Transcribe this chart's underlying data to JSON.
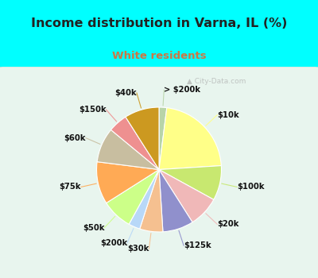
{
  "title": "Income distribution in Varna, IL (%)",
  "subtitle": "White residents",
  "background_color": "#00FFFF",
  "labels": [
    "> $200k",
    "$10k",
    "$100k",
    "$20k",
    "$125k",
    "$30k",
    "$200k",
    "$50k",
    "$75k",
    "$60k",
    "$150k",
    "$40k"
  ],
  "sizes": [
    2,
    22,
    9,
    8,
    8,
    6,
    3,
    8,
    11,
    9,
    5,
    9
  ],
  "colors": [
    "#b8d4a8",
    "#ffff88",
    "#c8e870",
    "#f0b8b8",
    "#9090cc",
    "#f5c090",
    "#b8d8f8",
    "#ccff88",
    "#ffaa55",
    "#c8bea0",
    "#ee9090",
    "#cc9920"
  ],
  "startangle": 90,
  "label_fontsize": 7.2,
  "title_color": "#222222",
  "subtitle_color": "#cc7744"
}
